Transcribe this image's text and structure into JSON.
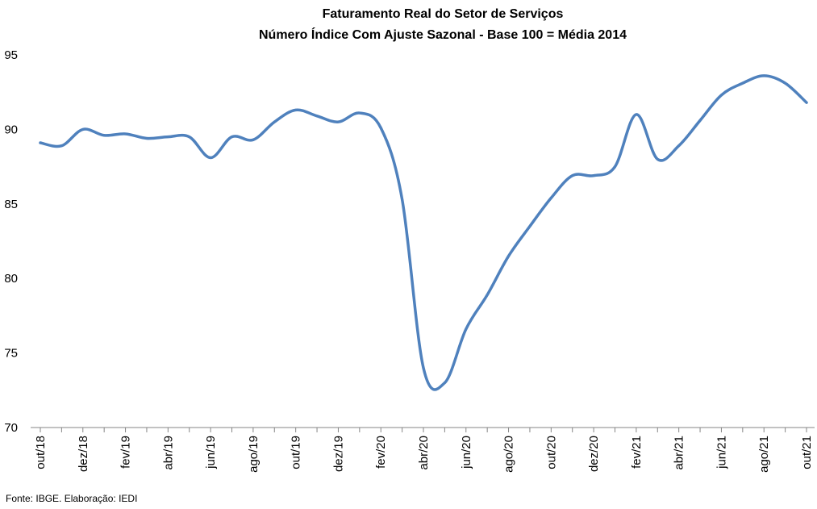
{
  "chart_data": {
    "type": "line",
    "title": [
      "Faturamento Real do Setor de Serviços",
      "Número Índice Com Ajuste Sazonal - Base 100 = Média 2014"
    ],
    "xlabel": "",
    "ylabel": "",
    "ylim": [
      70,
      95
    ],
    "yticks": [
      70,
      75,
      80,
      85,
      90,
      95
    ],
    "grid": false,
    "legend": "none",
    "line_color": "#4f81bd",
    "x": [
      "out/18",
      "nov/18",
      "dez/18",
      "jan/19",
      "fev/19",
      "mar/19",
      "abr/19",
      "mai/19",
      "jun/19",
      "jul/19",
      "ago/19",
      "set/19",
      "out/19",
      "nov/19",
      "dez/19",
      "jan/20",
      "fev/20",
      "mar/20",
      "abr/20",
      "mai/20",
      "jun/20",
      "jul/20",
      "ago/20",
      "set/20",
      "out/20",
      "nov/20",
      "dez/20",
      "jan/21",
      "fev/21",
      "mar/21",
      "abr/21",
      "mai/21",
      "jun/21",
      "jul/21",
      "ago/21",
      "set/21",
      "out/21"
    ],
    "xtick_labels": [
      "out/18",
      "dez/18",
      "fev/19",
      "abr/19",
      "jun/19",
      "ago/19",
      "out/19",
      "dez/19",
      "fev/20",
      "abr/20",
      "jun/20",
      "ago/20",
      "out/20",
      "dez/20",
      "fev/21",
      "abr/21",
      "jun/21",
      "ago/21",
      "out/21"
    ],
    "series": [
      {
        "values": [
          89.1,
          88.9,
          90.0,
          89.6,
          89.7,
          89.4,
          89.5,
          89.5,
          88.1,
          89.5,
          89.3,
          90.5,
          91.3,
          90.9,
          90.5,
          91.1,
          90.1,
          85.3,
          74.0,
          73.0,
          76.6,
          78.9,
          81.5,
          83.5,
          85.4,
          86.9,
          86.9,
          87.5,
          91.0,
          88.0,
          88.9,
          90.6,
          92.3,
          93.1,
          93.6,
          93.1,
          91.8
        ]
      }
    ]
  },
  "footer": {
    "source": "Fonte: IBGE. Elaboração: IEDI"
  }
}
